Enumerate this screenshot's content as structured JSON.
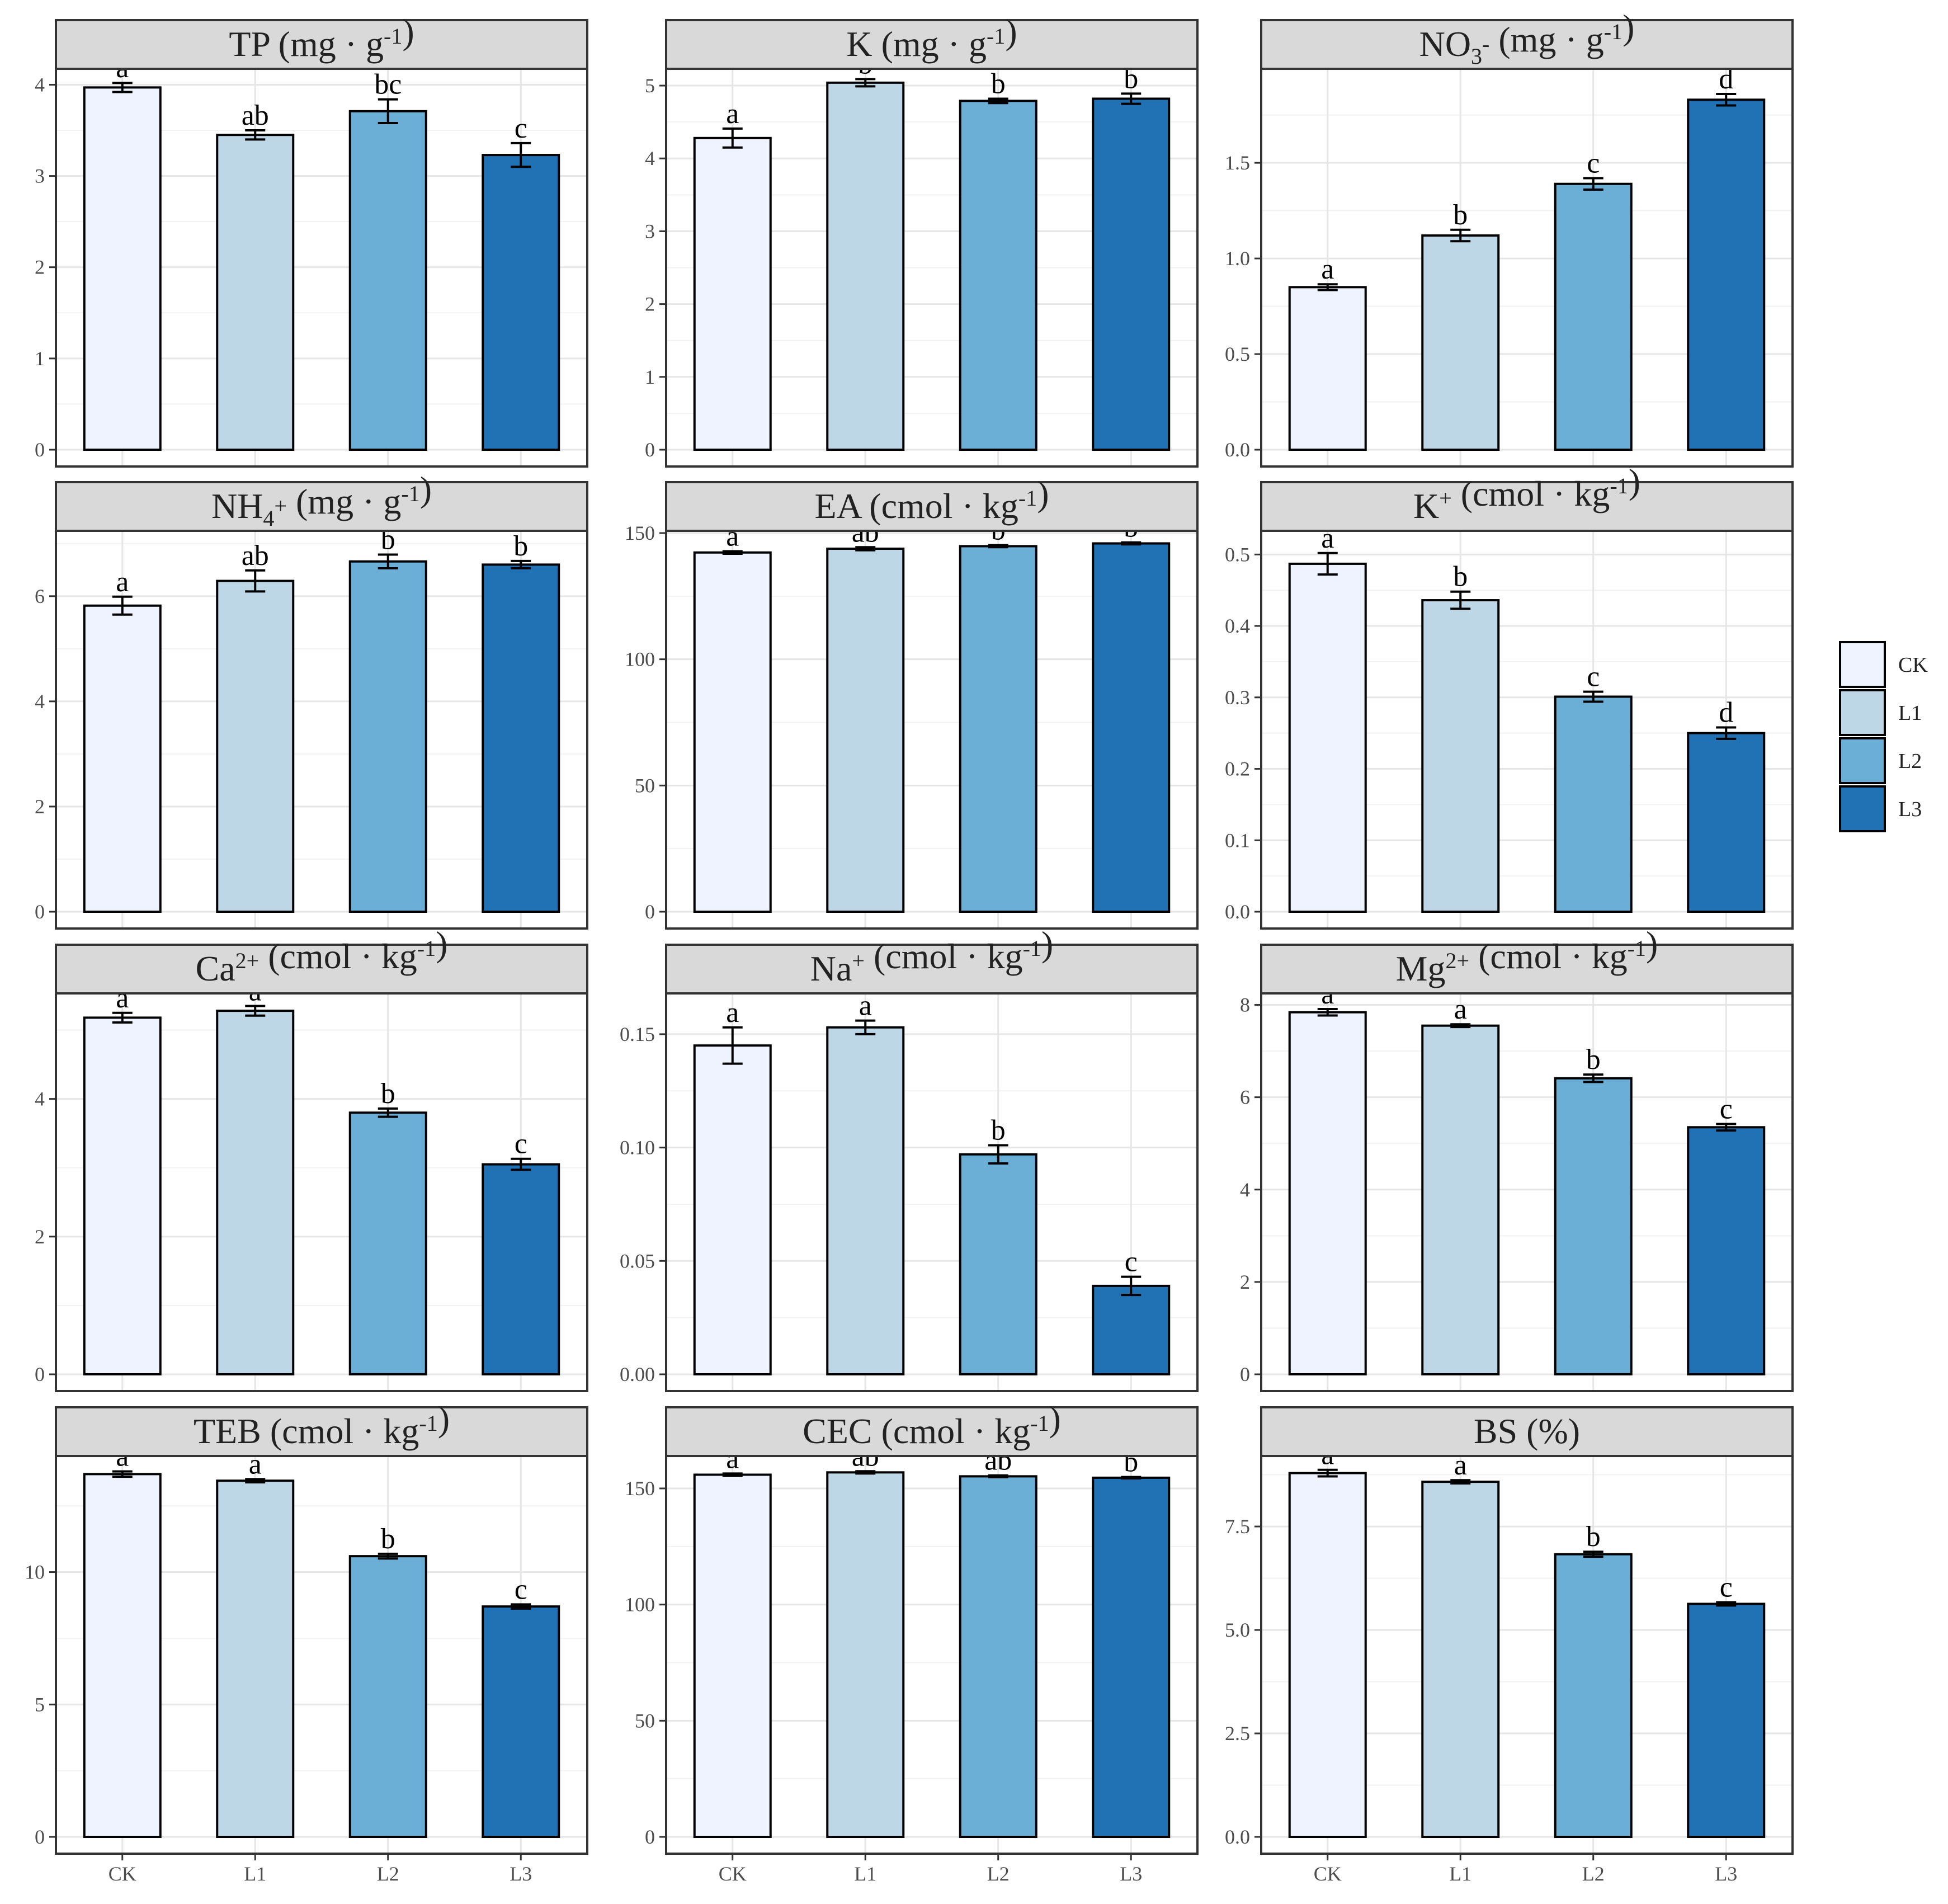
{
  "chart_data": {
    "type": "bar",
    "categories": [
      "CK",
      "L1",
      "L2",
      "L3"
    ],
    "colors": {
      "CK": "#eff3ff",
      "L1": "#bdd7e7",
      "L2": "#6baed6",
      "L3": "#2171b5"
    },
    "legend": {
      "position": "right",
      "items": [
        "CK",
        "L1",
        "L2",
        "L3"
      ]
    },
    "panels": [
      {
        "id": "tp",
        "title": "TP",
        "title_parts": [
          {
            "t": "TP (mg · g"
          },
          {
            "t": "-1",
            "sup": true
          },
          {
            "t": ")"
          }
        ],
        "values": [
          3.97,
          3.45,
          3.71,
          3.23
        ],
        "errors": [
          0.05,
          0.05,
          0.13,
          0.13
        ],
        "letters": [
          "a",
          "ab",
          "bc",
          "c"
        ],
        "ylim": [
          0,
          4.15
        ],
        "ticks": [
          0,
          1,
          2,
          3,
          4
        ],
        "tick_labels": [
          "0",
          "1",
          "2",
          "3",
          "4"
        ]
      },
      {
        "id": "k",
        "title": "K",
        "title_parts": [
          {
            "t": "K (mg · g"
          },
          {
            "t": "-1",
            "sup": true
          },
          {
            "t": ")"
          }
        ],
        "values": [
          4.28,
          5.04,
          4.79,
          4.82
        ],
        "errors": [
          0.13,
          0.05,
          0.03,
          0.07
        ],
        "letters": [
          "a",
          "b",
          "b",
          "b"
        ],
        "ylim": [
          0,
          5.2
        ],
        "ticks": [
          0,
          1,
          2,
          3,
          4,
          5
        ],
        "tick_labels": [
          "0",
          "1",
          "2",
          "3",
          "4",
          "5"
        ]
      },
      {
        "id": "no3",
        "title": "NO3-",
        "title_parts": [
          {
            "t": "NO"
          },
          {
            "t": "3",
            "sub": true
          },
          {
            "t": "-",
            "sup": true
          },
          {
            "t": " (mg · g"
          },
          {
            "t": "-1",
            "sup": true
          },
          {
            "t": ")"
          }
        ],
        "values": [
          0.85,
          1.12,
          1.39,
          1.83
        ],
        "errors": [
          0.015,
          0.03,
          0.03,
          0.03
        ],
        "letters": [
          "a",
          "b",
          "c",
          "d"
        ],
        "ylim": [
          0,
          1.98
        ],
        "ticks": [
          0,
          0.5,
          1,
          1.5
        ],
        "tick_labels": [
          "0.0",
          "0.5",
          "1.0",
          "1.5"
        ]
      },
      {
        "id": "nh4",
        "title": "NH4+",
        "title_parts": [
          {
            "t": "NH"
          },
          {
            "t": "4",
            "sub": true
          },
          {
            "t": "+",
            "sup": true
          },
          {
            "t": " (mg · g"
          },
          {
            "t": "-1",
            "sup": true
          },
          {
            "t": ")"
          }
        ],
        "values": [
          5.82,
          6.29,
          6.66,
          6.6
        ],
        "errors": [
          0.17,
          0.2,
          0.13,
          0.07
        ],
        "letters": [
          "a",
          "ab",
          "b",
          "b"
        ],
        "ylim": [
          0,
          7.2
        ],
        "ticks": [
          0,
          2,
          4,
          6
        ],
        "tick_labels": [
          "0",
          "2",
          "4",
          "6"
        ]
      },
      {
        "id": "ea",
        "title": "EA",
        "title_parts": [
          {
            "t": "EA (cmol · kg"
          },
          {
            "t": "-1",
            "sup": true
          },
          {
            "t": ")"
          }
        ],
        "values": [
          142.3,
          143.8,
          144.8,
          145.9
        ],
        "errors": [
          0.5,
          0.6,
          0.4,
          0.4
        ],
        "letters": [
          "a",
          "ab",
          "b",
          "b"
        ],
        "ylim": [
          0,
          150
        ],
        "ticks": [
          0,
          50,
          100,
          150
        ],
        "tick_labels": [
          "0",
          "50",
          "100",
          "150"
        ]
      },
      {
        "id": "kplus",
        "title": "K+",
        "title_parts": [
          {
            "t": "K"
          },
          {
            "t": "+",
            "sup": true
          },
          {
            "t": " (cmol · kg"
          },
          {
            "t": "-1",
            "sup": true
          },
          {
            "t": ")"
          }
        ],
        "values": [
          0.487,
          0.436,
          0.301,
          0.25
        ],
        "errors": [
          0.015,
          0.012,
          0.007,
          0.008
        ],
        "letters": [
          "a",
          "b",
          "c",
          "d"
        ],
        "ylim": [
          0,
          0.53
        ],
        "ticks": [
          0,
          0.1,
          0.2,
          0.3,
          0.4,
          0.5
        ],
        "tick_labels": [
          "0.0",
          "0.1",
          "0.2",
          "0.3",
          "0.4",
          "0.5"
        ]
      },
      {
        "id": "ca",
        "title": "Ca2+",
        "title_parts": [
          {
            "t": "Ca"
          },
          {
            "t": "2+",
            "sup": true
          },
          {
            "t": " (cmol · kg"
          },
          {
            "t": "-1",
            "sup": true
          },
          {
            "t": ")"
          }
        ],
        "values": [
          5.18,
          5.28,
          3.8,
          3.05
        ],
        "errors": [
          0.07,
          0.07,
          0.06,
          0.08
        ],
        "letters": [
          "a",
          "a",
          "b",
          "c"
        ],
        "ylim": [
          0,
          5.5
        ],
        "ticks": [
          0,
          2,
          4
        ],
        "tick_labels": [
          "0",
          "2",
          "4"
        ]
      },
      {
        "id": "na",
        "title": "Na+",
        "title_parts": [
          {
            "t": "Na"
          },
          {
            "t": "+",
            "sup": true
          },
          {
            "t": " (cmol · kg"
          },
          {
            "t": "-1",
            "sup": true
          },
          {
            "t": ")"
          }
        ],
        "values": [
          0.145,
          0.153,
          0.097,
          0.039
        ],
        "errors": [
          0.008,
          0.003,
          0.004,
          0.004
        ],
        "letters": [
          "a",
          "a",
          "b",
          "c"
        ],
        "ylim": [
          0,
          0.167
        ],
        "ticks": [
          0,
          0.05,
          0.1,
          0.15
        ],
        "tick_labels": [
          "0.00",
          "0.05",
          "0.10",
          "0.15"
        ]
      },
      {
        "id": "mg",
        "title": "Mg2+",
        "title_parts": [
          {
            "t": "Mg"
          },
          {
            "t": "2+",
            "sup": true
          },
          {
            "t": " (cmol · kg"
          },
          {
            "t": "-1",
            "sup": true
          },
          {
            "t": ")"
          }
        ],
        "values": [
          7.84,
          7.55,
          6.41,
          5.35
        ],
        "errors": [
          0.07,
          0.03,
          0.08,
          0.07
        ],
        "letters": [
          "a",
          "a",
          "b",
          "c"
        ],
        "ylim": [
          0,
          8.2
        ],
        "ticks": [
          0,
          2,
          4,
          6,
          8
        ],
        "tick_labels": [
          "0",
          "2",
          "4",
          "6",
          "8"
        ]
      },
      {
        "id": "teb",
        "title": "TEB",
        "title_parts": [
          {
            "t": "TEB (cmol · kg"
          },
          {
            "t": "-1",
            "sup": true
          },
          {
            "t": ")"
          }
        ],
        "values": [
          13.7,
          13.45,
          10.6,
          8.7
        ],
        "errors": [
          0.1,
          0.06,
          0.09,
          0.08
        ],
        "letters": [
          "a",
          "a",
          "b",
          "c"
        ],
        "ylim": [
          0,
          14.3
        ],
        "ticks": [
          0,
          5,
          10
        ],
        "tick_labels": [
          "0",
          "5",
          "10"
        ]
      },
      {
        "id": "cec",
        "title": "CEC",
        "title_parts": [
          {
            "t": "CEC (cmol · kg"
          },
          {
            "t": "-1",
            "sup": true
          },
          {
            "t": ")"
          }
        ],
        "values": [
          155.9,
          156.9,
          155.2,
          154.6
        ],
        "errors": [
          0.5,
          0.5,
          0.4,
          0.3
        ],
        "letters": [
          "a",
          "ab",
          "ab",
          "b"
        ],
        "ylim": [
          0,
          163
        ],
        "ticks": [
          0,
          50,
          100,
          150
        ],
        "tick_labels": [
          "0",
          "50",
          "100",
          "150"
        ]
      },
      {
        "id": "bs",
        "title": "BS (%)",
        "title_parts": [
          {
            "t": "BS (%)"
          }
        ],
        "values": [
          8.79,
          8.58,
          6.83,
          5.63
        ],
        "errors": [
          0.08,
          0.04,
          0.06,
          0.04
        ],
        "letters": [
          "a",
          "a",
          "b",
          "c"
        ],
        "ylim": [
          0,
          9.15
        ],
        "ticks": [
          0,
          2.5,
          5,
          7.5
        ],
        "tick_labels": [
          "0.0",
          "2.5",
          "5.0",
          "7.5"
        ]
      }
    ]
  }
}
